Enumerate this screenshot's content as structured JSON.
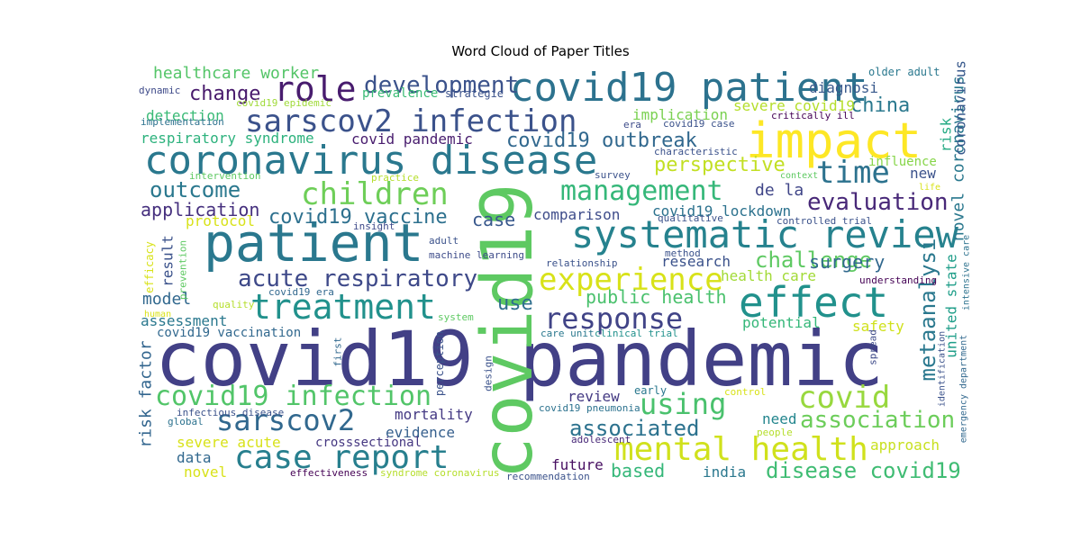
{
  "chart_data": {
    "type": "wordcloud",
    "title": "Word Cloud of Paper Titles",
    "words": [
      {
        "text": "covid19 pandemic",
        "color": "#424086"
      },
      {
        "text": "covid19",
        "color": "#5ec962"
      },
      {
        "text": "coronavirus disease",
        "color": "#2a788e"
      },
      {
        "text": "patient",
        "color": "#2a788e"
      },
      {
        "text": "impact",
        "color": "#fde725"
      },
      {
        "text": "covid19 patient",
        "color": "#2c728e"
      },
      {
        "text": "systematic review",
        "color": "#26828e"
      },
      {
        "text": "sarscov2 infection",
        "color": "#3b528b"
      },
      {
        "text": "effect",
        "color": "#21918c"
      },
      {
        "text": "treatment",
        "color": "#21918c"
      },
      {
        "text": "role",
        "color": "#481c6e"
      },
      {
        "text": "mental health",
        "color": "#d0e11c"
      },
      {
        "text": "case report",
        "color": "#277f8e"
      },
      {
        "text": "sarscov2",
        "color": "#31688e"
      },
      {
        "text": "covid19 infection",
        "color": "#52c569"
      },
      {
        "text": "children",
        "color": "#6ece58"
      },
      {
        "text": "experience",
        "color": "#d8e219"
      },
      {
        "text": "response",
        "color": "#414487"
      },
      {
        "text": "management",
        "color": "#35b779"
      },
      {
        "text": "time",
        "color": "#2c728e"
      },
      {
        "text": "covid",
        "color": "#98d83e"
      },
      {
        "text": "using",
        "color": "#4ac16d"
      },
      {
        "text": "association",
        "color": "#6ccd5a"
      },
      {
        "text": "development",
        "color": "#3b528b"
      },
      {
        "text": "acute respiratory",
        "color": "#3e4989"
      },
      {
        "text": "evaluation",
        "color": "#482878"
      },
      {
        "text": "challenge",
        "color": "#5ec962"
      },
      {
        "text": "disease covid19",
        "color": "#3fbc73"
      },
      {
        "text": "associated",
        "color": "#2c728e"
      },
      {
        "text": "outcome",
        "color": "#2a788e"
      },
      {
        "text": "change",
        "color": "#481a6c"
      },
      {
        "text": "covid19 outbreak",
        "color": "#31688e"
      },
      {
        "text": "covid19 vaccine",
        "color": "#2d708e"
      },
      {
        "text": "perspective",
        "color": "#c2df23"
      },
      {
        "text": "china",
        "color": "#2a788e"
      },
      {
        "text": "metaanalysi",
        "color": "#2a788e"
      },
      {
        "text": "public health",
        "color": "#4ac16d"
      },
      {
        "text": "use",
        "color": "#2e6e8e"
      },
      {
        "text": "case",
        "color": "#38588c"
      },
      {
        "text": "based",
        "color": "#35b779"
      },
      {
        "text": "application",
        "color": "#46307e"
      },
      {
        "text": "healthcare worker",
        "color": "#54c568"
      },
      {
        "text": "detection",
        "color": "#3aba76"
      },
      {
        "text": "respiratory syndrome",
        "color": "#2db27d"
      },
      {
        "text": "covid pandemic",
        "color": "#481c6e"
      },
      {
        "text": "implication",
        "color": "#7ad151"
      },
      {
        "text": "severe covid19",
        "color": "#b5de2b"
      },
      {
        "text": "diagnosi",
        "color": "#38598c"
      },
      {
        "text": "prevalence",
        "color": "#3bbb75"
      },
      {
        "text": "strategie",
        "color": "#3b528b"
      },
      {
        "text": "covid19 lockdown",
        "color": "#2c728e"
      },
      {
        "text": "de la",
        "color": "#404688"
      },
      {
        "text": "comparison",
        "color": "#3e4c8a"
      },
      {
        "text": "research",
        "color": "#3b528b"
      },
      {
        "text": "health care",
        "color": "#a2da37"
      },
      {
        "text": "surgery",
        "color": "#31688e"
      },
      {
        "text": "model",
        "color": "#31688e"
      },
      {
        "text": "assessment",
        "color": "#2a788e"
      },
      {
        "text": "covid19 vaccination",
        "color": "#31688e"
      },
      {
        "text": "potential",
        "color": "#35b779"
      },
      {
        "text": "safety",
        "color": "#d0e11c"
      },
      {
        "text": "review",
        "color": "#443a83"
      },
      {
        "text": "mortality",
        "color": "#443983"
      },
      {
        "text": "evidence",
        "color": "#355f8d"
      },
      {
        "text": "need",
        "color": "#24868e"
      },
      {
        "text": "approach",
        "color": "#c8e020"
      },
      {
        "text": "future",
        "color": "#470e61"
      },
      {
        "text": "india",
        "color": "#2a788e"
      },
      {
        "text": "severe acute",
        "color": "#d8e219"
      },
      {
        "text": "data",
        "color": "#31688e"
      },
      {
        "text": "novel",
        "color": "#d8e219"
      },
      {
        "text": "crosssectional",
        "color": "#453781"
      },
      {
        "text": "risk factor",
        "color": "#32658e"
      },
      {
        "text": "result",
        "color": "#3b528b"
      },
      {
        "text": "protocol",
        "color": "#d8e219"
      },
      {
        "text": "novel coronavirus",
        "color": "#2a788e"
      },
      {
        "text": "coronavirus",
        "color": "#38598c"
      },
      {
        "text": "risk",
        "color": "#24aa83"
      },
      {
        "text": "united state",
        "color": "#1f9e89"
      },
      {
        "text": "new",
        "color": "#3b528b"
      },
      {
        "text": "influence",
        "color": "#86d549"
      },
      {
        "text": "older adult",
        "color": "#2a788e"
      },
      {
        "text": "critically ill",
        "color": "#440154"
      },
      {
        "text": "dynamic",
        "color": "#3e4a89"
      },
      {
        "text": "implementation",
        "color": "#2c728e"
      },
      {
        "text": "covid19 epidemic",
        "color": "#a0da39"
      },
      {
        "text": "era",
        "color": "#3e4c8a"
      },
      {
        "text": "covid19 case",
        "color": "#3b528b"
      },
      {
        "text": "characteristic",
        "color": "#3b528b"
      },
      {
        "text": "context",
        "color": "#5ec962"
      },
      {
        "text": "life",
        "color": "#d8e219"
      },
      {
        "text": "survey",
        "color": "#3b528b"
      },
      {
        "text": "intervention",
        "color": "#5ec962"
      },
      {
        "text": "practice",
        "color": "#b5de2b"
      },
      {
        "text": "insight",
        "color": "#3e4a89"
      },
      {
        "text": "qualitative",
        "color": "#3b528b"
      },
      {
        "text": "controlled trial",
        "color": "#3b528b"
      },
      {
        "text": "adult",
        "color": "#3b528b"
      },
      {
        "text": "machine learning",
        "color": "#3e4c8a"
      },
      {
        "text": "relationship",
        "color": "#3b528b"
      },
      {
        "text": "method",
        "color": "#3b528b"
      },
      {
        "text": "understanding",
        "color": "#440154"
      },
      {
        "text": "efficacy",
        "color": "#d8e219"
      },
      {
        "text": "prevention",
        "color": "#5ec962"
      },
      {
        "text": "quality",
        "color": "#b5de2b"
      },
      {
        "text": "human",
        "color": "#d8e219"
      },
      {
        "text": "covid19 era",
        "color": "#31688e"
      },
      {
        "text": "system",
        "color": "#5ec962"
      },
      {
        "text": "perception",
        "color": "#3b528b"
      },
      {
        "text": "first",
        "color": "#31688e"
      },
      {
        "text": "care unit",
        "color": "#2a788e"
      },
      {
        "text": "clinical trial",
        "color": "#21918c"
      },
      {
        "text": "design",
        "color": "#3b528b"
      },
      {
        "text": "early",
        "color": "#2a788e"
      },
      {
        "text": "control",
        "color": "#d8e219"
      },
      {
        "text": "covid19 pneumonia",
        "color": "#2c728e"
      },
      {
        "text": "infectious disease",
        "color": "#3b528b"
      },
      {
        "text": "global",
        "color": "#2c728e"
      },
      {
        "text": "adolescent",
        "color": "#482878"
      },
      {
        "text": "people",
        "color": "#b5de2b"
      },
      {
        "text": "effectiveness",
        "color": "#440154"
      },
      {
        "text": "syndrome coronavirus",
        "color": "#b5de2b"
      },
      {
        "text": "recommendation",
        "color": "#3b528b"
      },
      {
        "text": "spread",
        "color": "#3e4a89"
      },
      {
        "text": "identification",
        "color": "#3b528b"
      },
      {
        "text": "emergency department",
        "color": "#31688e"
      },
      {
        "text": "intensive care",
        "color": "#2c728e"
      }
    ]
  }
}
